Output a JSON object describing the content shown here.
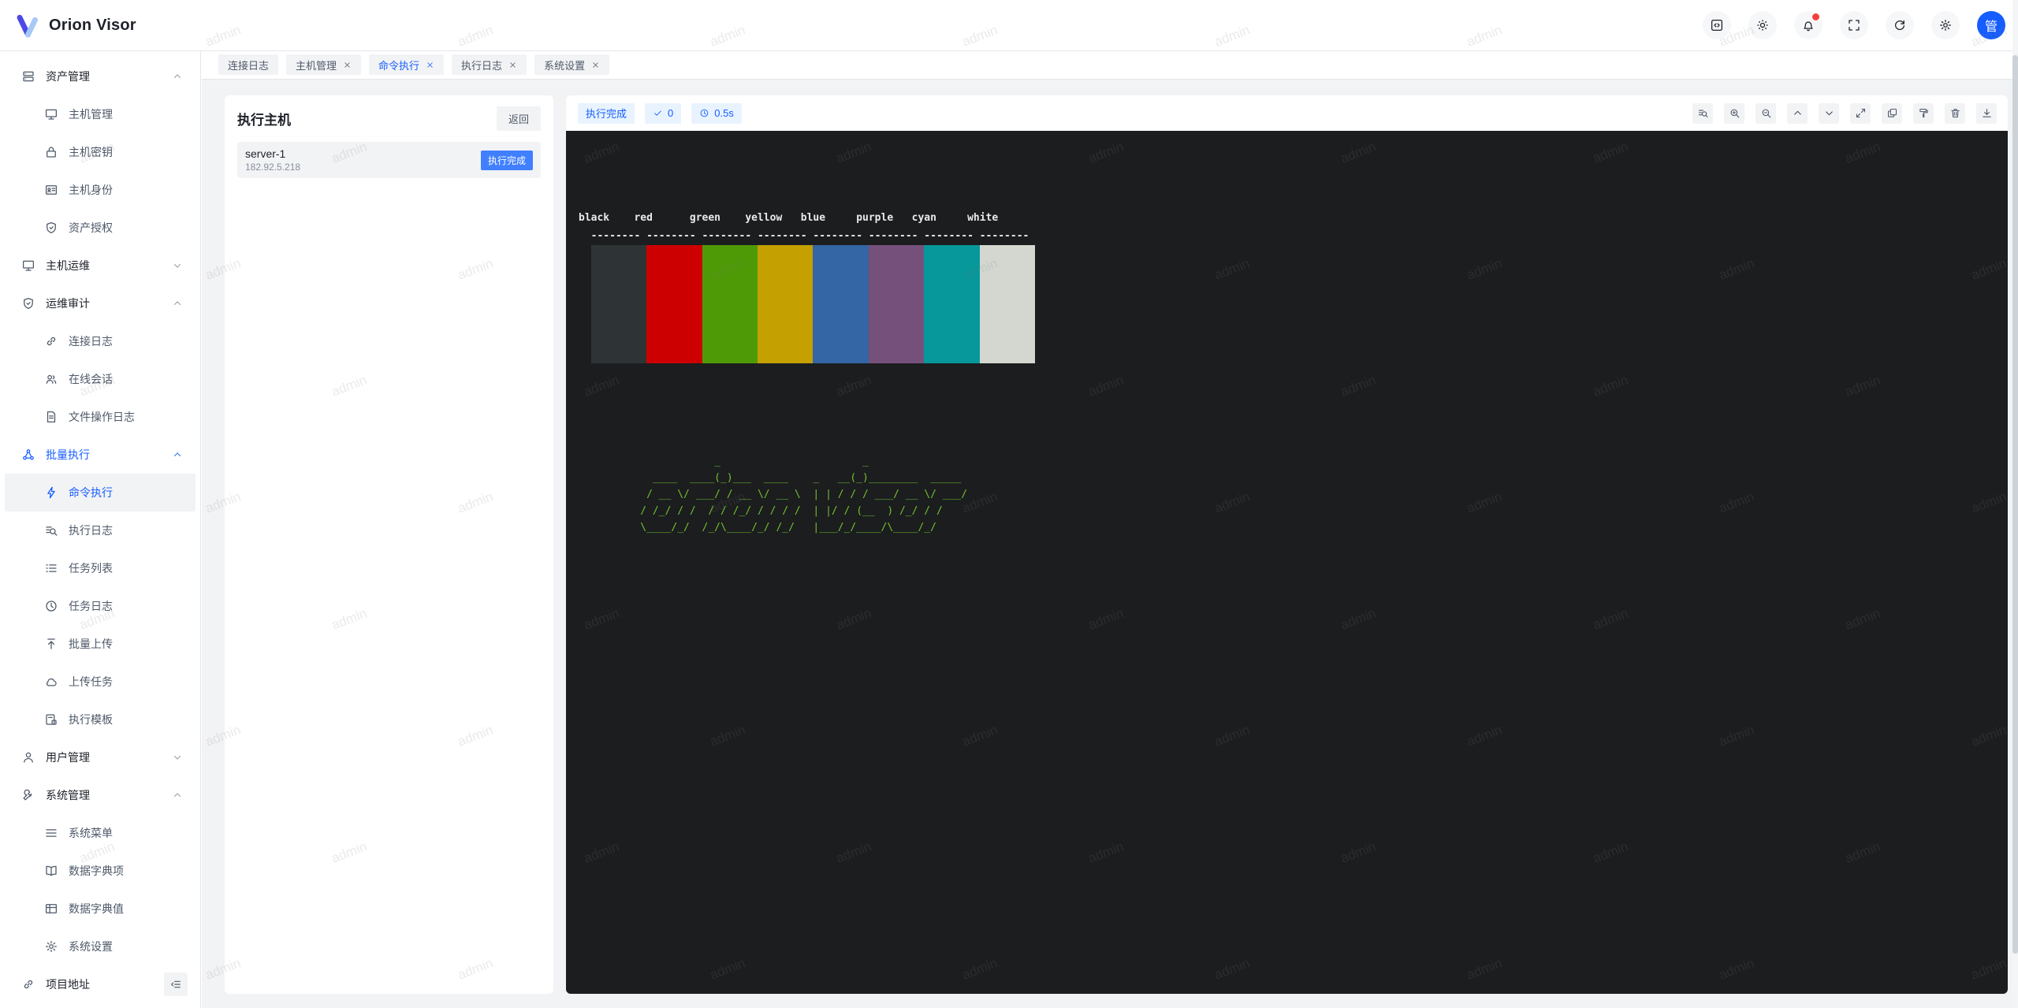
{
  "app": {
    "title": "Orion Visor",
    "avatar_text": "管"
  },
  "header": {
    "icons": [
      "code",
      "theme",
      "bell",
      "fullscreen",
      "refresh",
      "settings"
    ],
    "bell_has_badge": true
  },
  "tabs": [
    {
      "label": "连接日志",
      "closable": false,
      "active": false
    },
    {
      "label": "主机管理",
      "closable": true,
      "active": false
    },
    {
      "label": "命令执行",
      "closable": true,
      "active": true
    },
    {
      "label": "执行日志",
      "closable": true,
      "active": false
    },
    {
      "label": "系统设置",
      "closable": true,
      "active": false
    }
  ],
  "sidebar": {
    "items": [
      {
        "label": "资产管理",
        "icon": "storage",
        "level": "group",
        "chevron": "up"
      },
      {
        "label": "主机管理",
        "icon": "desktop",
        "level": "child"
      },
      {
        "label": "主机密钥",
        "icon": "lock",
        "level": "child"
      },
      {
        "label": "主机身份",
        "icon": "idcard",
        "level": "child"
      },
      {
        "label": "资产授权",
        "icon": "shield",
        "level": "child"
      },
      {
        "label": "主机运维",
        "icon": "desktop",
        "level": "group",
        "chevron": "down"
      },
      {
        "label": "运维审计",
        "icon": "shield",
        "level": "group",
        "chevron": "up"
      },
      {
        "label": "连接日志",
        "icon": "link",
        "level": "child"
      },
      {
        "label": "在线会话",
        "icon": "users",
        "level": "child"
      },
      {
        "label": "文件操作日志",
        "icon": "file",
        "level": "child"
      },
      {
        "label": "批量执行",
        "icon": "cluster",
        "level": "group",
        "chevron": "up",
        "active_group": true
      },
      {
        "label": "命令执行",
        "icon": "bolt",
        "level": "child",
        "current": true
      },
      {
        "label": "执行日志",
        "icon": "search-logs",
        "level": "child"
      },
      {
        "label": "任务列表",
        "icon": "list",
        "level": "child"
      },
      {
        "label": "任务日志",
        "icon": "clock",
        "level": "child"
      },
      {
        "label": "批量上传",
        "icon": "upload",
        "level": "child"
      },
      {
        "label": "上传任务",
        "icon": "cloud",
        "level": "child"
      },
      {
        "label": "执行模板",
        "icon": "template",
        "level": "child"
      },
      {
        "label": "用户管理",
        "icon": "user",
        "level": "group",
        "chevron": "down"
      },
      {
        "label": "系统管理",
        "icon": "wrench",
        "level": "group",
        "chevron": "up"
      },
      {
        "label": "系统菜单",
        "icon": "menu",
        "level": "child"
      },
      {
        "label": "数据字典项",
        "icon": "book",
        "level": "child"
      },
      {
        "label": "数据字典值",
        "icon": "table",
        "level": "child"
      },
      {
        "label": "系统设置",
        "icon": "gear",
        "level": "child"
      },
      {
        "label": "项目地址",
        "icon": "link",
        "level": "group",
        "trailing_collapse": true
      }
    ]
  },
  "host_panel": {
    "title": "执行主机",
    "back_label": "返回",
    "servers": [
      {
        "name": "server-1",
        "ip": "182.92.5.218",
        "status": "执行完成"
      }
    ]
  },
  "terminal": {
    "status_chips": [
      {
        "icon": null,
        "label": "执行完成"
      },
      {
        "icon": "check",
        "label": "0"
      },
      {
        "icon": "clock",
        "label": "0.5s"
      }
    ],
    "toolbar_icons": [
      "search-logs",
      "zoom-in",
      "zoom-out",
      "up",
      "down",
      "expand",
      "copy",
      "clear",
      "trash",
      "download"
    ],
    "labels_line": "black    red      green    yellow   blue     purple   cyan     white",
    "dashes_line": "  -------- -------- -------- -------- -------- -------- -------- --------",
    "palette": [
      {
        "name": "black",
        "hex": "#2e3436"
      },
      {
        "name": "red",
        "hex": "#cc0000"
      },
      {
        "name": "green",
        "hex": "#4e9a06"
      },
      {
        "name": "yellow",
        "hex": "#c4a000"
      },
      {
        "name": "blue",
        "hex": "#3465a4"
      },
      {
        "name": "purple",
        "hex": "#75507b"
      },
      {
        "name": "cyan",
        "hex": "#06989a"
      },
      {
        "name": "white",
        "hex": "#d3d7cf"
      }
    ],
    "ascii_art": [
      "            _                       _",
      "  ____  ____(_)___  ____    _   __(_)________  _____",
      " / __ \\/ ___/ / __ \\/ __ \\  | | / / / ___/ __ \\/ ___/",
      "/ /_/ / /  / / /_/ / / / /  | |/ / (__  ) /_/ / /",
      "\\____/_/  /_/\\____/_/ /_/   |___/_/____/\\____/_/"
    ],
    "colors": {
      "background": "#1b1d1f",
      "text": "#e9eaec",
      "art_green": "#74c12c"
    }
  },
  "watermark": {
    "text": "admin"
  },
  "colors": {
    "accent": "#165dff",
    "badge_blue": "#4080ff",
    "chip_bg": "#e8f3ff",
    "page_bg": "#f2f3f5"
  }
}
